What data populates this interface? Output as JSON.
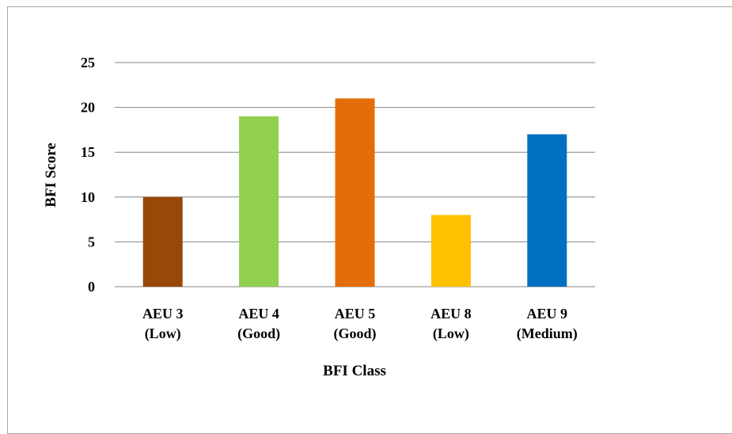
{
  "chart_data": {
    "type": "bar",
    "title": "",
    "xlabel": "BFI Class",
    "ylabel": "BFI Score",
    "ylim": [
      0,
      25
    ],
    "yticks": [
      0,
      5,
      10,
      15,
      20,
      25
    ],
    "grid": true,
    "legend": "none",
    "categories": [
      {
        "line1": "AEU 3",
        "line2": "(Low)"
      },
      {
        "line1": "AEU 4",
        "line2": "(Good)"
      },
      {
        "line1": "AEU 5",
        "line2": "(Good)"
      },
      {
        "line1": "AEU 8",
        "line2": "(Low)"
      },
      {
        "line1": "AEU 9",
        "line2": "(Medium)"
      }
    ],
    "values": [
      10,
      19,
      21,
      8,
      17
    ],
    "colors": [
      "#984807",
      "#92d050",
      "#e46c0a",
      "#ffc000",
      "#0070c0"
    ],
    "gridColor": "#868686"
  }
}
